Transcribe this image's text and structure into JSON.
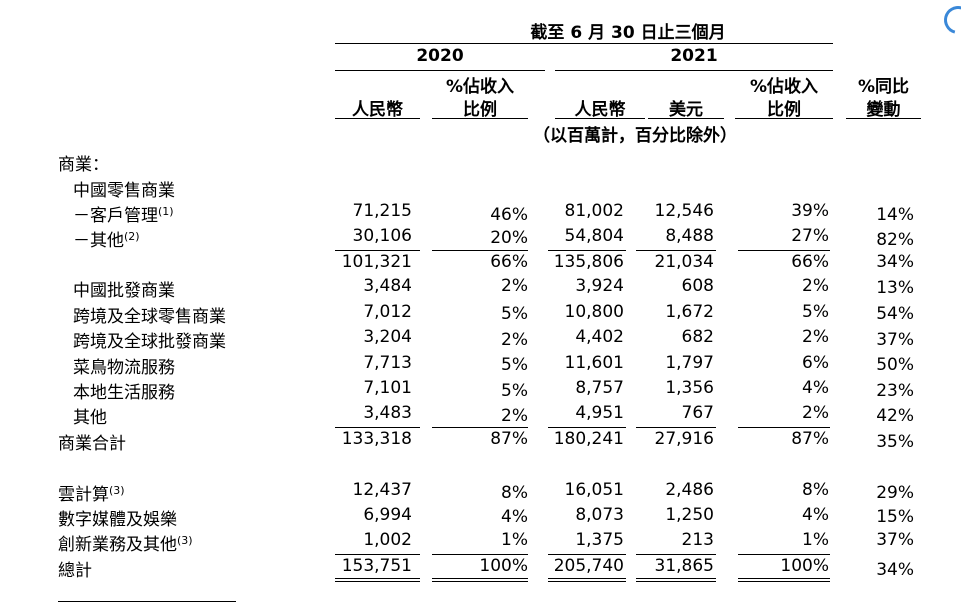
{
  "header": {
    "period": "截至 6 月 30 日止三個月",
    "year_2020": "2020",
    "year_2021": "2021",
    "col_rmb_2020": "人民幣",
    "col_pct_2020_l1": "%佔收入",
    "col_pct_2020_l2": "比例",
    "col_rmb_2021": "人民幣",
    "col_usd_2021": "美元",
    "col_pct_2021_l1": "%佔收入",
    "col_pct_2021_l2": "比例",
    "col_yoy_l1": "%同比",
    "col_yoy_l2": "變動",
    "unit_note": "（以百萬計，百分比除外）"
  },
  "rows": [
    {
      "label": "商業：",
      "values": [
        "",
        "",
        "",
        "",
        "",
        ""
      ]
    },
    {
      "label": "中國零售商業",
      "values": [
        "",
        "",
        "",
        "",
        "",
        ""
      ]
    },
    {
      "label": "－客戶管理",
      "sup": "(1)",
      "values": [
        "71,215",
        "46%",
        "81,002",
        "12,546",
        "39%",
        "14%"
      ]
    },
    {
      "label": "－其他",
      "sup": "(2)",
      "values": [
        "30,106",
        "20%",
        "54,804",
        "8,488",
        "27%",
        "82%"
      ]
    },
    {
      "label": "",
      "values": [
        "101,321",
        "66%",
        "135,806",
        "21,034",
        "66%",
        "34%"
      ]
    },
    {
      "label": "中國批發商業",
      "values": [
        "3,484",
        "2%",
        "3,924",
        "608",
        "2%",
        "13%"
      ]
    },
    {
      "label": "跨境及全球零售商業",
      "values": [
        "7,012",
        "5%",
        "10,800",
        "1,672",
        "5%",
        "54%"
      ]
    },
    {
      "label": "跨境及全球批發商業",
      "values": [
        "3,204",
        "2%",
        "4,402",
        "682",
        "2%",
        "37%"
      ]
    },
    {
      "label": "菜鳥物流服務",
      "values": [
        "7,713",
        "5%",
        "11,601",
        "1,797",
        "6%",
        "50%"
      ]
    },
    {
      "label": "本地生活服務",
      "values": [
        "7,101",
        "5%",
        "8,757",
        "1,356",
        "4%",
        "23%"
      ]
    },
    {
      "label": "其他",
      "values": [
        "3,483",
        "2%",
        "4,951",
        "767",
        "2%",
        "42%"
      ]
    },
    {
      "label": "商業合計",
      "values": [
        "133,318",
        "87%",
        "180,241",
        "27,916",
        "87%",
        "35%"
      ]
    },
    {
      "label": "雲計算",
      "sup": "(3)",
      "values": [
        "12,437",
        "8%",
        "16,051",
        "2,486",
        "8%",
        "29%"
      ]
    },
    {
      "label": "數字媒體及娛樂",
      "values": [
        "6,994",
        "4%",
        "8,073",
        "1,250",
        "4%",
        "15%"
      ]
    },
    {
      "label": "創新業務及其他",
      "sup": "(3)",
      "values": [
        "1,002",
        "1%",
        "1,375",
        "213",
        "1%",
        "37%"
      ]
    },
    {
      "label": "總計",
      "values": [
        "153,751",
        "100%",
        "205,740",
        "31,865",
        "100%",
        "34%"
      ]
    }
  ]
}
